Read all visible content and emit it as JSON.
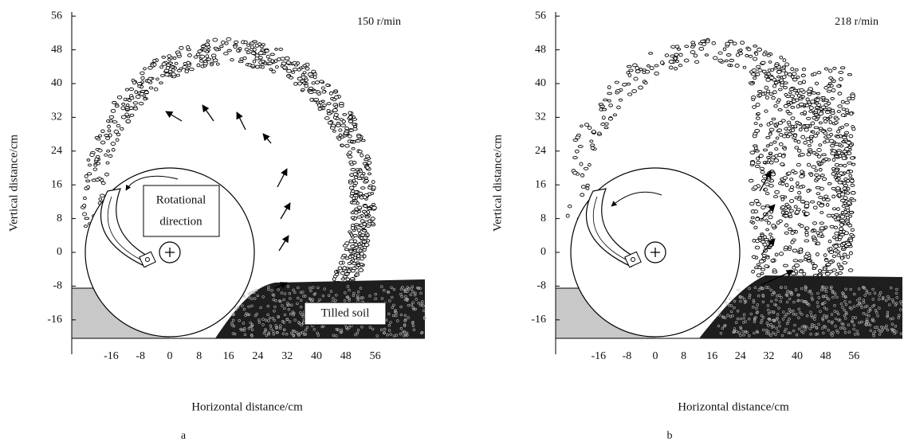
{
  "panels": [
    {
      "label": "a",
      "speed": "150 r/min",
      "x_axis_label": "Horizontal distance/cm",
      "y_axis_label": "Vertical distance/cm",
      "xticks": [
        -16,
        -8,
        0,
        8,
        16,
        24,
        32,
        40,
        48,
        56
      ],
      "yticks": [
        56,
        48,
        40,
        32,
        24,
        16,
        8,
        0,
        -8,
        -16
      ],
      "rotation_label": [
        "Rotational",
        "direction"
      ],
      "soil_label": "Tilled soil"
    },
    {
      "label": "b",
      "speed": "218 r/min",
      "x_axis_label": "Horizontal distance/cm",
      "y_axis_label": "Vertical distance/cm",
      "xticks": [
        -16,
        -8,
        0,
        8,
        16,
        24,
        32,
        40,
        48,
        56
      ],
      "yticks": [
        56,
        48,
        40,
        32,
        24,
        16,
        8,
        0,
        -8,
        -16
      ]
    }
  ]
}
